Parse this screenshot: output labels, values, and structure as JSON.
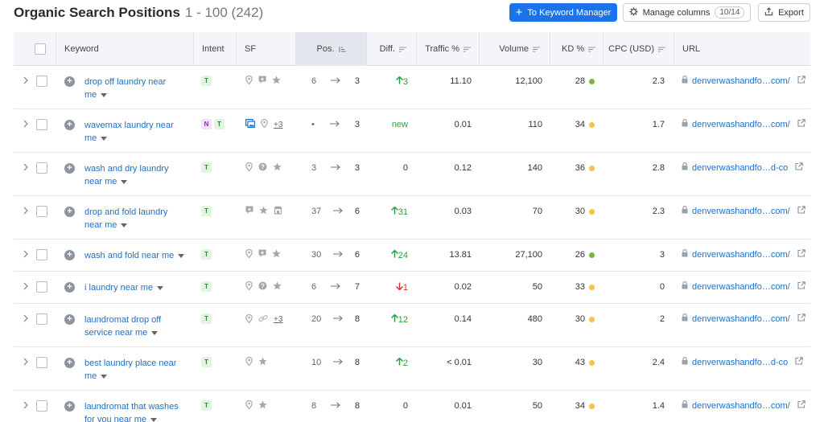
{
  "header": {
    "title": "Organic Search Positions",
    "range": "1 - 100 (242)",
    "keyword_manager_button": "To Keyword Manager",
    "manage_columns_button": "Manage columns",
    "columns_count": "10/14",
    "export_button": "Export"
  },
  "columns": {
    "keyword": "Keyword",
    "intent": "Intent",
    "sf": "SF",
    "pos": "Pos.",
    "diff": "Diff.",
    "traffic": "Traffic %",
    "volume": "Volume",
    "kd": "KD %",
    "cpc": "CPC (USD)",
    "url": "URL"
  },
  "colors": {
    "accent": "#1a73e8",
    "kd_green": "#7cb342",
    "kd_yellow": "#f6c344",
    "up": "#2d9c3d",
    "down": "#d9342b"
  },
  "rows": [
    {
      "kw1": "drop off laundry near",
      "kw2": "me",
      "intent": [
        "T"
      ],
      "sf": [
        "pin-icon",
        "review-icon",
        "star-icon"
      ],
      "sf_more": "",
      "pos_from": "6",
      "pos_to": "3",
      "diff": "3",
      "diff_dir": "up",
      "traffic": "11.10",
      "volume": "12,100",
      "kd": "28",
      "kd_color": "green",
      "cpc": "2.3",
      "url": "denverwashandfo…com/"
    },
    {
      "kw1": "wavemax laundry near",
      "kw2": "me",
      "intent": [
        "N",
        "T"
      ],
      "sf": [
        "image-icon",
        "pin-icon"
      ],
      "sf_more": "+3",
      "pos_from": "•",
      "pos_to": "3",
      "diff": "new",
      "diff_dir": "new",
      "traffic": "0.01",
      "volume": "110",
      "kd": "34",
      "kd_color": "yellow",
      "cpc": "1.7",
      "url": "denverwashandfo…com/"
    },
    {
      "kw1": "wash and dry laundry",
      "kw2": "near me",
      "intent": [
        "T"
      ],
      "sf": [
        "pin-icon",
        "question-icon",
        "star-icon"
      ],
      "sf_more": "",
      "pos_from": "3",
      "pos_to": "3",
      "diff": "0",
      "diff_dir": "zero",
      "traffic": "0.12",
      "volume": "140",
      "kd": "36",
      "kd_color": "yellow",
      "cpc": "2.8",
      "url": "denverwashandfo…d-co"
    },
    {
      "kw1": "drop and fold laundry",
      "kw2": "near me",
      "intent": [
        "T"
      ],
      "sf": [
        "review-icon",
        "star-icon",
        "shop-icon"
      ],
      "sf_more": "",
      "pos_from": "37",
      "pos_to": "6",
      "diff": "31",
      "diff_dir": "up",
      "traffic": "0.03",
      "volume": "70",
      "kd": "30",
      "kd_color": "yellow",
      "cpc": "2.3",
      "url": "denverwashandfo…com/"
    },
    {
      "kw1": "wash and fold near me",
      "kw2": "",
      "intent": [
        "T"
      ],
      "sf": [
        "pin-icon",
        "review-icon",
        "star-icon"
      ],
      "sf_more": "",
      "pos_from": "30",
      "pos_to": "6",
      "diff": "24",
      "diff_dir": "up",
      "traffic": "13.81",
      "volume": "27,100",
      "kd": "26",
      "kd_color": "green",
      "cpc": "3",
      "url": "denverwashandfo…com/"
    },
    {
      "kw1": "i laundry near me",
      "kw2": "",
      "intent": [
        "T"
      ],
      "sf": [
        "pin-icon",
        "question-icon",
        "star-icon"
      ],
      "sf_more": "",
      "pos_from": "6",
      "pos_to": "7",
      "diff": "1",
      "diff_dir": "down",
      "traffic": "0.02",
      "volume": "50",
      "kd": "33",
      "kd_color": "yellow",
      "cpc": "0",
      "url": "denverwashandfo…com/"
    },
    {
      "kw1": "laundromat drop off",
      "kw2": "service near me",
      "intent": [
        "T"
      ],
      "sf": [
        "pin-icon",
        "link-icon"
      ],
      "sf_more": "+3",
      "pos_from": "20",
      "pos_to": "8",
      "diff": "12",
      "diff_dir": "up",
      "traffic": "0.14",
      "volume": "480",
      "kd": "30",
      "kd_color": "yellow",
      "cpc": "2",
      "url": "denverwashandfo…com/"
    },
    {
      "kw1": "best laundry place near",
      "kw2": "me",
      "intent": [
        "T"
      ],
      "sf": [
        "pin-icon",
        "star-icon"
      ],
      "sf_more": "",
      "pos_from": "10",
      "pos_to": "8",
      "diff": "2",
      "diff_dir": "up",
      "traffic": "< 0.01",
      "volume": "30",
      "kd": "43",
      "kd_color": "yellow",
      "cpc": "2.4",
      "url": "denverwashandfo…d-co"
    },
    {
      "kw1": "laundromat that washes",
      "kw2": "for you near me",
      "intent": [
        "T"
      ],
      "sf": [
        "pin-icon",
        "star-icon"
      ],
      "sf_more": "",
      "pos_from": "8",
      "pos_to": "8",
      "diff": "0",
      "diff_dir": "zero",
      "traffic": "0.01",
      "volume": "50",
      "kd": "34",
      "kd_color": "yellow",
      "cpc": "1.4",
      "url": "denverwashandfo…com/"
    }
  ]
}
